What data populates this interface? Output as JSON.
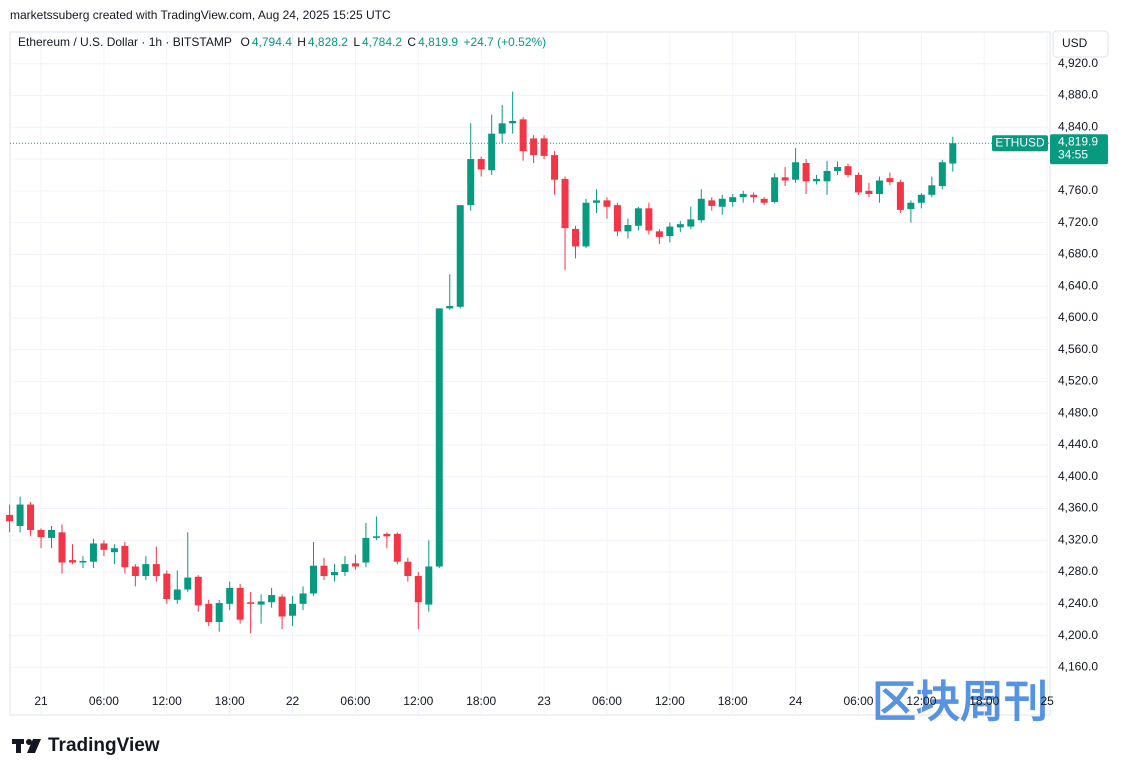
{
  "credit": "marketssuberg created with TradingView.com, Aug 24, 2025 15:25 UTC",
  "brand": "TradingView",
  "watermark": "区块周刊",
  "currency_button": "USD",
  "chart_data": {
    "type": "candlestick",
    "title": "Ethereum / U.S. Dollar · 1h · BITSTAMP",
    "ohlc_header": {
      "o_label": "O",
      "o": "4,794.4",
      "h_label": "H",
      "h": "4,828.2",
      "l_label": "L",
      "l": "4,784.2",
      "c_label": "C",
      "c": "4,819.9",
      "change": "+24.7 (+0.52%)"
    },
    "last_price": {
      "value": 4819.9,
      "label": "4,819.9"
    },
    "countdown": "34:55",
    "categories": [
      null,
      null,
      null,
      "21",
      null,
      null,
      null,
      null,
      null,
      "06:00",
      null,
      null,
      null,
      null,
      null,
      "12:00",
      null,
      null,
      null,
      null,
      null,
      "18:00",
      null,
      null,
      null,
      null,
      null,
      "22",
      null,
      null,
      null,
      null,
      null,
      "06:00",
      null,
      null,
      null,
      null,
      null,
      "12:00",
      null,
      null,
      null,
      null,
      null,
      "18:00",
      null,
      null,
      null,
      null,
      null,
      "23",
      null,
      null,
      null,
      null,
      null,
      "06:00",
      null,
      null,
      null,
      null,
      null,
      "12:00",
      null,
      null,
      null,
      null,
      null,
      "18:00",
      null,
      null,
      null,
      null,
      null,
      "24",
      null,
      null,
      null,
      null,
      null,
      "06:00",
      null,
      null,
      null,
      null,
      null,
      "12:00",
      null,
      null,
      null,
      null,
      null,
      "18:00",
      null,
      null,
      null,
      null,
      null,
      "25"
    ],
    "series": [
      {
        "name": "ETHUSD",
        "up_color": "#089981",
        "down_color": "#f23645",
        "open": [
          4352,
          4338,
          4365,
          4333,
          4323,
          4330,
          4295,
          4292,
          4293,
          4316,
          4305,
          4313,
          4287,
          4275,
          4290,
          4278,
          4245,
          4258,
          4274,
          4240,
          4217,
          4240,
          4260,
          4242,
          4239,
          4242,
          4249,
          4225,
          4240,
          4253,
          4288,
          4276,
          4280,
          4291,
          4292,
          4323,
          4328,
          4328,
          4293,
          4275,
          4239,
          4287,
          4612,
          4614,
          4742,
          4800,
          4786,
          4832,
          4845,
          4850,
          4826,
          4826,
          4805,
          4775,
          4712,
          4690,
          4745,
          4748,
          4742,
          4709,
          4716,
          4738,
          4709,
          4703,
          4714,
          4715,
          4723,
          4748,
          4740,
          4746,
          4752,
          4755,
          4750,
          4746,
          4777,
          4774,
          4795,
          4772,
          4772,
          4785,
          4791,
          4780,
          4760,
          4756,
          4776,
          4771,
          4737,
          4745,
          4755,
          4766,
          4794.4,
          null,
          null,
          null,
          null,
          null,
          null,
          null,
          null,
          null
        ],
        "high": [
          4365,
          4375,
          4368,
          4335,
          4338,
          4340,
          4315,
          4300,
          4322,
          4320,
          4315,
          4318,
          4290,
          4300,
          4312,
          4282,
          4282,
          4330,
          4276,
          4245,
          4245,
          4268,
          4265,
          4255,
          4252,
          4260,
          4252,
          4250,
          4262,
          4318,
          4298,
          4290,
          4300,
          4302,
          4342,
          4350,
          4330,
          4330,
          4298,
          4280,
          4320,
          4612,
          4655,
          4742,
          4845,
          4803,
          4856,
          4868,
          4885,
          4853,
          4830,
          4830,
          4810,
          4778,
          4716,
          4750,
          4762,
          4752,
          4745,
          4725,
          4740,
          4745,
          4712,
          4720,
          4722,
          4740,
          4762,
          4752,
          4755,
          4756,
          4760,
          4758,
          4752,
          4782,
          4790,
          4814,
          4800,
          4780,
          4798,
          4797,
          4794,
          4783,
          4770,
          4778,
          4783,
          4774,
          4748,
          4757,
          4778,
          4799,
          4828.2,
          null,
          null,
          null,
          null,
          null,
          null,
          null,
          null,
          null
        ],
        "low": [
          4330,
          4330,
          4325,
          4310,
          4310,
          4278,
          4290,
          4285,
          4285,
          4300,
          4290,
          4278,
          4262,
          4270,
          4268,
          4240,
          4240,
          4255,
          4230,
          4212,
          4205,
          4232,
          4215,
          4203,
          4215,
          4235,
          4208,
          4212,
          4232,
          4250,
          4270,
          4268,
          4275,
          4283,
          4286,
          4320,
          4310,
          4290,
          4268,
          4208,
          4230,
          4285,
          4610,
          4612,
          4735,
          4778,
          4780,
          4820,
          4832,
          4798,
          4795,
          4800,
          4755,
          4660,
          4675,
          4688,
          4732,
          4725,
          4703,
          4700,
          4710,
          4705,
          4693,
          4695,
          4708,
          4712,
          4720,
          4735,
          4730,
          4740,
          4745,
          4745,
          4742,
          4744,
          4766,
          4770,
          4756,
          4768,
          4755,
          4780,
          4777,
          4755,
          4752,
          4745,
          4767,
          4732,
          4720,
          4738,
          4752,
          4762,
          4784.2,
          null,
          null,
          null,
          null,
          null,
          null,
          null,
          null,
          null
        ],
        "close": [
          4344,
          4365,
          4333,
          4324,
          4333,
          4292,
          4292,
          4294,
          4316,
          4308,
          4310,
          4286,
          4275,
          4290,
          4275,
          4246,
          4258,
          4273,
          4238,
          4217,
          4241,
          4260,
          4220,
          4240,
          4243,
          4251,
          4224,
          4240,
          4253,
          4288,
          4275,
          4280,
          4290,
          4287,
          4323,
          4325,
          4325,
          4293,
          4275,
          4242,
          4287,
          4612,
          4615,
          4742,
          4800,
          4787,
          4832,
          4845,
          4848,
          4810,
          4805,
          4804,
          4774,
          4713,
          4690,
          4745,
          4748,
          4740,
          4709,
          4717,
          4738,
          4710,
          4702,
          4715,
          4718,
          4724,
          4750,
          4741,
          4750,
          4752,
          4756,
          4752,
          4745,
          4777,
          4773,
          4796,
          4772,
          4775,
          4785,
          4790,
          4780,
          4758,
          4756,
          4773,
          4771,
          4736,
          4745,
          4755,
          4767,
          4796,
          4819.9,
          null,
          null,
          null,
          null,
          null,
          null,
          null,
          null,
          null
        ]
      }
    ],
    "ylim": [
      4100,
      4960
    ],
    "yticks": [
      {
        "value": 4160,
        "label": "4,160.0"
      },
      {
        "value": 4200,
        "label": "4,200.0"
      },
      {
        "value": 4240,
        "label": "4,240.0"
      },
      {
        "value": 4280,
        "label": "4,280.0"
      },
      {
        "value": 4320,
        "label": "4,320.0"
      },
      {
        "value": 4360,
        "label": "4,360.0"
      },
      {
        "value": 4400,
        "label": "4,400.0"
      },
      {
        "value": 4440,
        "label": "4,440.0"
      },
      {
        "value": 4480,
        "label": "4,480.0"
      },
      {
        "value": 4520,
        "label": "4,520.0"
      },
      {
        "value": 4560,
        "label": "4,560.0"
      },
      {
        "value": 4600,
        "label": "4,600.0"
      },
      {
        "value": 4640,
        "label": "4,640.0"
      },
      {
        "value": 4680,
        "label": "4,680.0"
      },
      {
        "value": 4720,
        "label": "4,720.0"
      },
      {
        "value": 4760,
        "label": "4,760.0"
      },
      {
        "value": 4800,
        "label": "4,800.0"
      },
      {
        "value": 4840,
        "label": "4,840.0"
      },
      {
        "value": 4880,
        "label": "4,880.0"
      },
      {
        "value": 4920,
        "label": "4,920.0"
      }
    ],
    "grid": true
  }
}
